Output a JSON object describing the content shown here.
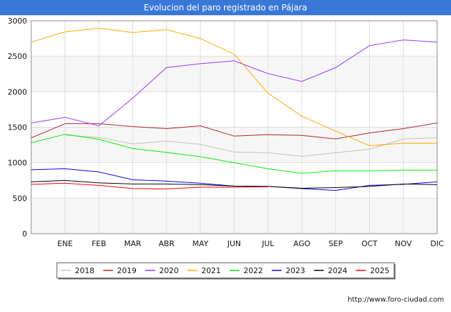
{
  "page": {
    "title": "Evolucion del paro registrado en Pájara",
    "credit": "http://www.foro-ciudad.com"
  },
  "chart_data": {
    "type": "line",
    "title": "Evolucion del paro registrado en Pájara",
    "xlabel": "",
    "ylabel": "",
    "ylim": [
      0,
      3000
    ],
    "yticks": [
      0,
      500,
      1000,
      1500,
      2000,
      2500,
      3000
    ],
    "categories": [
      "",
      "ENE",
      "FEB",
      "MAR",
      "ABR",
      "MAY",
      "JUN",
      "JUL",
      "AGO",
      "SEP",
      "OCT",
      "NOV",
      "DIC"
    ],
    "legend_position": "bottom",
    "series": [
      {
        "name": "2018",
        "color": "#c0c0c0",
        "values": [
          null,
          1390,
          1355,
          1265,
          1305,
          1260,
          1150,
          1140,
          1090,
          1140,
          1190,
          1335,
          1350
        ]
      },
      {
        "name": "2019",
        "color": "#b22222",
        "values": [
          1350,
          1550,
          1550,
          1510,
          1480,
          1520,
          1375,
          1395,
          1385,
          1335,
          1420,
          1480,
          1560
        ]
      },
      {
        "name": "2020",
        "color": "#9b30ff",
        "values": [
          1560,
          1640,
          1520,
          1910,
          2340,
          2395,
          2435,
          2255,
          2145,
          2340,
          2650,
          2730,
          2700
        ]
      },
      {
        "name": "2021",
        "color": "#ffa500",
        "values": [
          2700,
          2845,
          2895,
          2835,
          2875,
          2750,
          2530,
          1980,
          1655,
          1445,
          1240,
          1275,
          1275
        ]
      },
      {
        "name": "2022",
        "color": "#00ee00",
        "values": [
          1280,
          1400,
          1330,
          1200,
          1145,
          1085,
          1000,
          915,
          850,
          885,
          885,
          895,
          895
        ]
      },
      {
        "name": "2023",
        "color": "#0000ee",
        "values": [
          900,
          915,
          870,
          760,
          740,
          710,
          670,
          665,
          635,
          610,
          680,
          695,
          730
        ]
      },
      {
        "name": "2024",
        "color": "#000000",
        "values": [
          730,
          750,
          715,
          700,
          700,
          690,
          670,
          665,
          640,
          650,
          665,
          700,
          690
        ]
      },
      {
        "name": "2025",
        "color": "#ee0000",
        "values": [
          695,
          710,
          680,
          635,
          630,
          655,
          655,
          660,
          null,
          null,
          null,
          null,
          null
        ]
      }
    ]
  }
}
